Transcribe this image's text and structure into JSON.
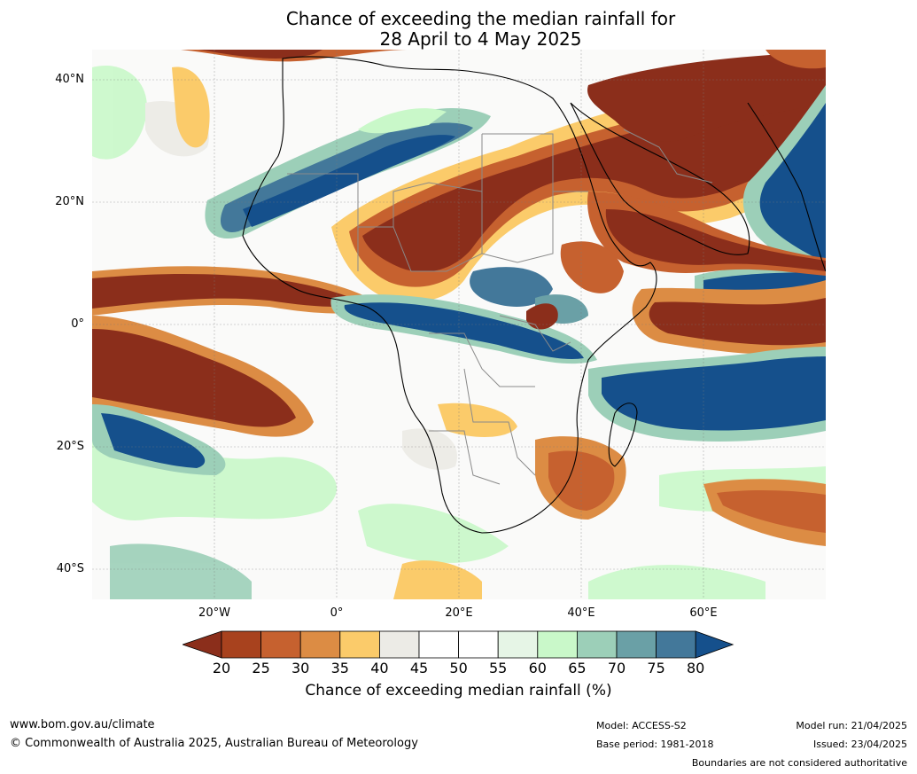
{
  "title": {
    "line1": "Chance of exceeding the median rainfall for",
    "line2": "28 April to 4 May 2025"
  },
  "map": {
    "lat_labels": [
      "40°N",
      "20°N",
      "0°",
      "20°S",
      "40°S"
    ],
    "lon_labels": [
      "20°W",
      "0°",
      "20°E",
      "40°E",
      "60°E"
    ]
  },
  "legend": {
    "ticks": [
      "20",
      "25",
      "30",
      "35",
      "40",
      "45",
      "50",
      "55",
      "60",
      "65",
      "70",
      "75",
      "80"
    ],
    "colors": [
      "#8b2e1b",
      "#a8421e",
      "#c6612f",
      "#dc8c44",
      "#fbcb6a",
      "#ecebe6",
      "#ffffff",
      "#ffffff",
      "#e6f5e6",
      "#c9f8c9",
      "#9ccfb8",
      "#6aa0a6",
      "#43789a",
      "#15508c"
    ],
    "title": "Chance of exceeding median rainfall (%)"
  },
  "footer": {
    "website": "www.bom.gov.au/climate",
    "copyright": "© Commonwealth of Australia 2025, Australian Bureau of Meteorology",
    "model": "Model: ACCESS-S2",
    "base_period": "Base period: 1981-2018",
    "model_run": "Model run: 21/04/2025",
    "issued": "Issued: 23/04/2025",
    "disclaimer": "Boundaries are not considered authoritative"
  }
}
